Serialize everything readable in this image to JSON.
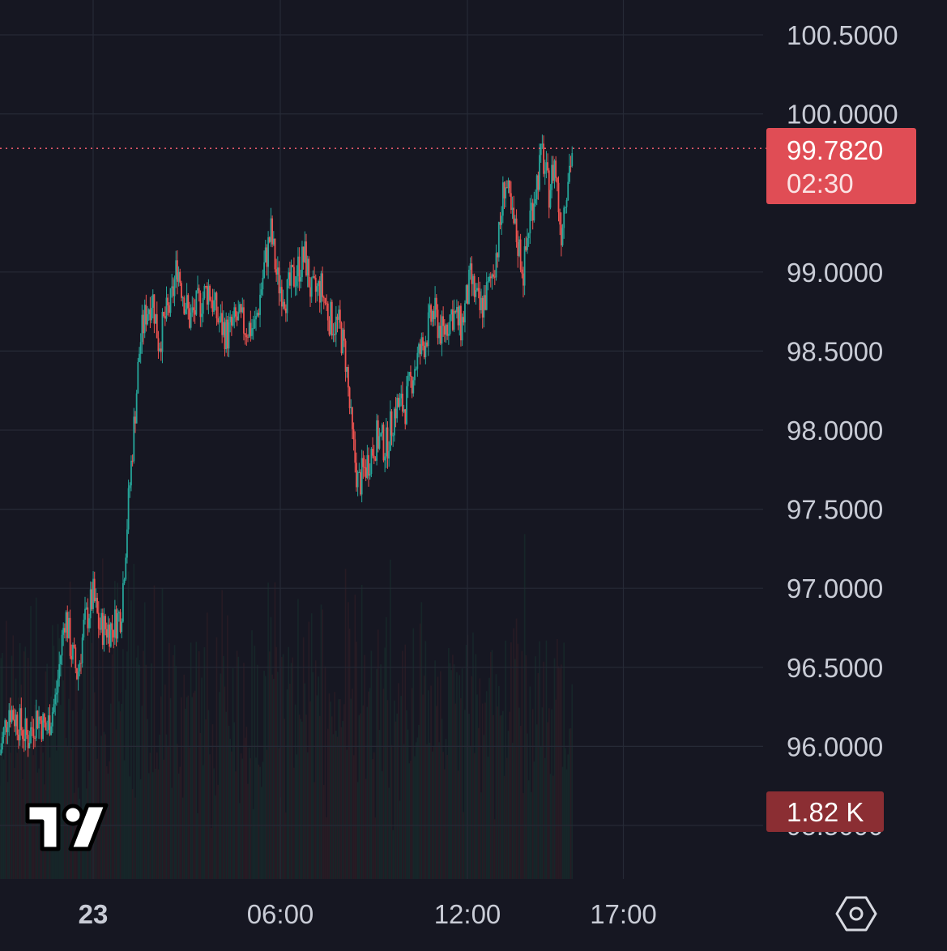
{
  "chart_data": {
    "type": "candlestick",
    "y_ticks": [
      "100.5000",
      "100.0000",
      "99.0000",
      "98.5000",
      "98.0000",
      "97.5000",
      "97.0000",
      "96.5000",
      "96.0000",
      "95.5000"
    ],
    "y_tick_values": [
      100.5,
      100.0,
      99.0,
      98.5,
      98.0,
      97.5,
      97.0,
      96.5,
      96.0,
      95.5
    ],
    "ylim": [
      95.5,
      100.65
    ],
    "x_ticks": [
      "23",
      "06:00",
      "12:00",
      "17:00"
    ],
    "x_tick_hours": [
      0,
      6,
      12,
      17
    ],
    "xlim_hours": [
      -3,
      21.5
    ],
    "last_price": {
      "value": 99.782,
      "label": "99.7820",
      "countdown": "02:30"
    },
    "volume_badge": "1.82 K",
    "price_path": [
      {
        "h": -3.0,
        "p": 95.95
      },
      {
        "h": -2.7,
        "p": 96.25
      },
      {
        "h": -2.4,
        "p": 96.15
      },
      {
        "h": -2.1,
        "p": 96.05
      },
      {
        "h": -1.8,
        "p": 96.2
      },
      {
        "h": -1.5,
        "p": 96.1
      },
      {
        "h": -1.2,
        "p": 96.3
      },
      {
        "h": -0.9,
        "p": 96.85
      },
      {
        "h": -0.7,
        "p": 96.6
      },
      {
        "h": -0.5,
        "p": 96.45
      },
      {
        "h": -0.3,
        "p": 96.75
      },
      {
        "h": 0.0,
        "p": 96.95
      },
      {
        "h": 0.2,
        "p": 96.75
      },
      {
        "h": 0.6,
        "p": 96.75
      },
      {
        "h": 0.9,
        "p": 96.85
      },
      {
        "h": 1.1,
        "p": 97.45
      },
      {
        "h": 1.3,
        "p": 98.0
      },
      {
        "h": 1.5,
        "p": 98.55
      },
      {
        "h": 1.7,
        "p": 98.75
      },
      {
        "h": 1.9,
        "p": 98.85
      },
      {
        "h": 2.1,
        "p": 98.55
      },
      {
        "h": 2.3,
        "p": 98.7
      },
      {
        "h": 2.5,
        "p": 98.8
      },
      {
        "h": 2.7,
        "p": 99.05
      },
      {
        "h": 2.9,
        "p": 98.85
      },
      {
        "h": 3.1,
        "p": 98.7
      },
      {
        "h": 3.4,
        "p": 98.8
      },
      {
        "h": 3.7,
        "p": 98.9
      },
      {
        "h": 4.0,
        "p": 98.7
      },
      {
        "h": 4.3,
        "p": 98.6
      },
      {
        "h": 4.6,
        "p": 98.7
      },
      {
        "h": 4.9,
        "p": 98.65
      },
      {
        "h": 5.2,
        "p": 98.65
      },
      {
        "h": 5.5,
        "p": 99.05
      },
      {
        "h": 5.7,
        "p": 99.25
      },
      {
        "h": 5.9,
        "p": 98.95
      },
      {
        "h": 6.2,
        "p": 98.85
      },
      {
        "h": 6.5,
        "p": 99.0
      },
      {
        "h": 6.8,
        "p": 99.1
      },
      {
        "h": 7.0,
        "p": 98.85
      },
      {
        "h": 7.3,
        "p": 98.9
      },
      {
        "h": 7.6,
        "p": 98.7
      },
      {
        "h": 7.9,
        "p": 98.65
      },
      {
        "h": 8.1,
        "p": 98.45
      },
      {
        "h": 8.3,
        "p": 97.95
      },
      {
        "h": 8.5,
        "p": 97.65
      },
      {
        "h": 8.8,
        "p": 97.8
      },
      {
        "h": 9.1,
        "p": 97.95
      },
      {
        "h": 9.4,
        "p": 97.9
      },
      {
        "h": 9.7,
        "p": 98.15
      },
      {
        "h": 10.0,
        "p": 98.15
      },
      {
        "h": 10.3,
        "p": 98.4
      },
      {
        "h": 10.6,
        "p": 98.55
      },
      {
        "h": 10.9,
        "p": 98.75
      },
      {
        "h": 11.2,
        "p": 98.6
      },
      {
        "h": 11.5,
        "p": 98.75
      },
      {
        "h": 11.8,
        "p": 98.65
      },
      {
        "h": 12.1,
        "p": 98.95
      },
      {
        "h": 12.4,
        "p": 98.75
      },
      {
        "h": 12.7,
        "p": 98.9
      },
      {
        "h": 13.0,
        "p": 99.2
      },
      {
        "h": 13.2,
        "p": 99.6
      },
      {
        "h": 13.4,
        "p": 99.35
      },
      {
        "h": 13.6,
        "p": 99.2
      },
      {
        "h": 13.8,
        "p": 99.0
      },
      {
        "h": 14.0,
        "p": 99.35
      },
      {
        "h": 14.2,
        "p": 99.55
      },
      {
        "h": 14.4,
        "p": 99.75
      },
      {
        "h": 14.6,
        "p": 99.5
      },
      {
        "h": 14.8,
        "p": 99.7
      },
      {
        "h": 15.0,
        "p": 99.25
      },
      {
        "h": 15.2,
        "p": 99.6
      },
      {
        "h": 15.4,
        "p": 99.8
      }
    ],
    "colors": {
      "up": "#26a69a",
      "down": "#ef5350",
      "grid": "#262a36",
      "price_line": "#e5596a",
      "price_badge": "#e04d55",
      "volume_badge": "#8b2e33",
      "axis_text": "#c9ccd6",
      "background": "#161722"
    }
  },
  "icons": {
    "logo": "tradingview-logo",
    "settings": "hexagon-settings-icon"
  }
}
